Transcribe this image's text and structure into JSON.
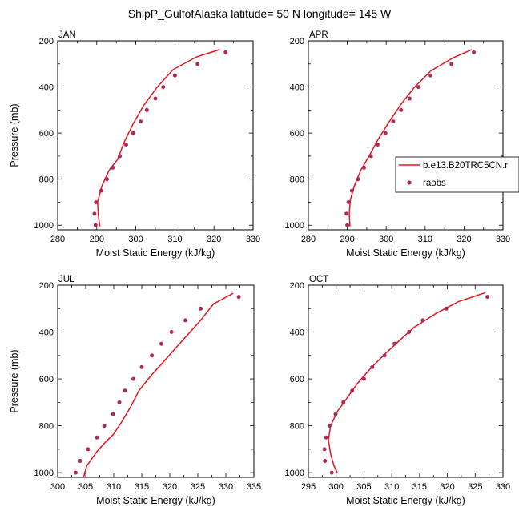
{
  "title": "ShipP_GulfofAlaska  latitude= 50 N longitude= 145 W",
  "legend": {
    "model_label": "b.e13.B20TRC5CN.r",
    "obs_label": "raobs"
  },
  "colors": {
    "model_line": "#e8141c",
    "obs_marker": "#b0285a"
  },
  "chart_data": [
    {
      "type": "line",
      "panel_label": "JAN",
      "xlabel": "Moist Static Energy (kJ/kg)",
      "ylabel": "Pressure (mb)",
      "xlim": [
        280,
        330
      ],
      "ylim": [
        1020,
        200
      ],
      "xticks": [
        280,
        290,
        300,
        310,
        320,
        330
      ],
      "yticks": [
        200,
        400,
        600,
        800,
        1000
      ],
      "series": [
        {
          "name": "b.e13.B20TRC5CN.r",
          "kind": "line",
          "x": [
            321.5,
            315.5,
            309.5,
            305.5,
            302.0,
            299.3,
            297.0,
            295.3,
            293.2,
            291.3,
            290.2,
            290.4,
            290.8
          ],
          "y": [
            238,
            270,
            325,
            400,
            480,
            560,
            640,
            715,
            760,
            830,
            900,
            960,
            1005
          ]
        },
        {
          "name": "raobs",
          "kind": "scatter",
          "x": [
            323.0,
            315.8,
            310.0,
            307.0,
            305.0,
            302.8,
            301.2,
            299.3,
            297.5,
            295.9,
            294.1,
            292.6,
            291.1,
            289.8,
            289.4,
            289.7
          ],
          "y": [
            250,
            300,
            350,
            400,
            450,
            500,
            550,
            600,
            650,
            700,
            750,
            800,
            850,
            900,
            950,
            1000
          ]
        }
      ]
    },
    {
      "type": "line",
      "panel_label": "APR",
      "xlabel": "Moist Static Energy (kJ/kg)",
      "ylabel": "",
      "xlim": [
        280,
        330
      ],
      "ylim": [
        1020,
        200
      ],
      "xticks": [
        280,
        290,
        300,
        310,
        320,
        330
      ],
      "yticks": [
        200,
        400,
        600,
        800,
        1000
      ],
      "series": [
        {
          "name": "b.e13.B20TRC5CN.r",
          "kind": "line",
          "x": [
            322.0,
            317.0,
            311.5,
            307.3,
            303.8,
            300.8,
            298.0,
            295.6,
            293.5,
            291.8,
            290.8,
            290.5,
            290.7
          ],
          "y": [
            238,
            275,
            330,
            400,
            475,
            550,
            625,
            700,
            760,
            830,
            890,
            950,
            1005
          ]
        },
        {
          "name": "raobs",
          "kind": "scatter",
          "x": [
            322.5,
            316.8,
            311.4,
            308.3,
            306.0,
            303.8,
            301.8,
            299.8,
            297.8,
            296.1,
            294.3,
            292.8,
            291.2,
            290.3,
            289.8,
            290.0
          ],
          "y": [
            250,
            300,
            350,
            400,
            450,
            500,
            550,
            600,
            650,
            700,
            750,
            800,
            850,
            900,
            950,
            1000
          ]
        }
      ]
    },
    {
      "type": "line",
      "panel_label": "JUL",
      "xlabel": "Moist Static Energy (kJ/kg)",
      "ylabel": "Pressure (mb)",
      "xlim": [
        300,
        335
      ],
      "ylim": [
        1020,
        200
      ],
      "xticks": [
        300,
        305,
        310,
        315,
        320,
        325,
        330,
        335
      ],
      "yticks": [
        200,
        400,
        600,
        800,
        1000
      ],
      "series": [
        {
          "name": "b.e13.B20TRC5CN.r",
          "kind": "line",
          "x": [
            331.3,
            327.8,
            325.5,
            322.5,
            319.5,
            316.5,
            314.5,
            313.0,
            311.5,
            310.0,
            308.5,
            307.0,
            305.2,
            304.6
          ],
          "y": [
            235,
            280,
            350,
            430,
            510,
            590,
            650,
            720,
            780,
            835,
            870,
            910,
            970,
            1020
          ]
        },
        {
          "name": "raobs",
          "kind": "scatter",
          "x": [
            332.3,
            325.5,
            322.8,
            320.3,
            318.5,
            316.8,
            315.0,
            313.5,
            312.0,
            311.0,
            309.9,
            308.3,
            307.0,
            305.4,
            304.0,
            303.2
          ],
          "y": [
            250,
            300,
            350,
            400,
            450,
            500,
            550,
            600,
            650,
            700,
            750,
            800,
            850,
            900,
            950,
            1000
          ]
        }
      ]
    },
    {
      "type": "line",
      "panel_label": "OCT",
      "xlabel": "Moist Static Energy (kJ/kg)",
      "ylabel": "",
      "xlim": [
        295,
        330
      ],
      "ylim": [
        1020,
        200
      ],
      "xticks": [
        295,
        300,
        305,
        310,
        315,
        320,
        325,
        330
      ],
      "yticks": [
        200,
        400,
        600,
        800,
        1000
      ],
      "series": [
        {
          "name": "b.e13.B20TRC5CN.r",
          "kind": "line",
          "x": [
            326.8,
            322.0,
            318.0,
            314.0,
            311.2,
            308.5,
            306.0,
            303.8,
            302.0,
            300.2,
            299.0,
            298.6,
            299.0,
            299.6,
            300.2
          ],
          "y": [
            232,
            270,
            320,
            380,
            440,
            500,
            560,
            620,
            680,
            740,
            800,
            860,
            920,
            970,
            1000
          ]
        },
        {
          "name": "raobs",
          "kind": "scatter",
          "x": [
            327.2,
            319.8,
            315.6,
            313.1,
            310.5,
            308.7,
            306.5,
            305.0,
            302.9,
            301.3,
            299.9,
            298.8,
            298.2,
            297.9,
            298.0,
            299.2
          ],
          "y": [
            250,
            300,
            350,
            400,
            450,
            500,
            550,
            600,
            650,
            700,
            750,
            800,
            850,
            900,
            950,
            1000
          ]
        }
      ]
    }
  ]
}
